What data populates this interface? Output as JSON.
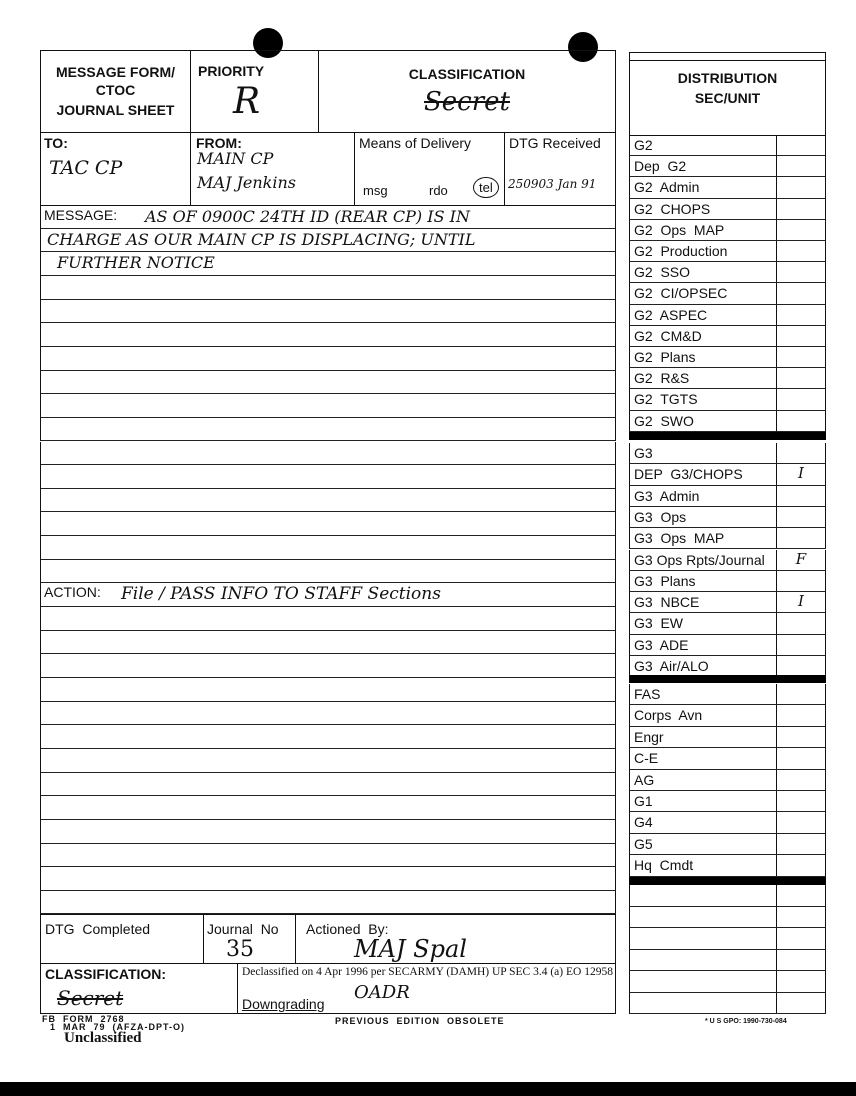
{
  "form": {
    "title_lines": [
      "MESSAGE FORM/",
      "CTOC",
      "JOURNAL SHEET"
    ],
    "priority_label": "PRIORITY",
    "priority_value": "R",
    "classification_label": "CLASSIFICATION",
    "classification_value": "Secret",
    "to_label": "TO:",
    "to_value": "TAC CP",
    "from_label": "FROM:",
    "from_lines": [
      "MAIN CP",
      "MAJ Jenkins"
    ],
    "means_label": "Means of Delivery",
    "means_options": [
      "msg",
      "rdo",
      "tel"
    ],
    "means_selected": "tel",
    "dtg_received_label": "DTG Received",
    "dtg_received_value": "250903 Jan 91",
    "message_label": "MESSAGE:",
    "message_lines": [
      "AS OF 0900C 24TH ID (REAR CP) IS IN",
      "CHARGE AS OUR MAIN CP IS DISPLACING; UNTIL",
      "FURTHER NOTICE"
    ],
    "action_label": "ACTION:",
    "action_value": "File / PASS INFO TO STAFF Sections",
    "dtg_completed_label": "DTG  Completed",
    "journal_no_label": "Journal  No",
    "journal_no_value": "35",
    "actioned_by_label": "Actioned  By:",
    "actioned_by_value": "MAJ Spal",
    "bottom_classification_label": "CLASSIFICATION:",
    "bottom_classification_value": "Secret",
    "declassified_note": "Declassified on 4 Apr 1996 per SECARMY (DAMH) UP SEC 3.4 (a) EO 12958",
    "downgrading_label": "Downgrading",
    "downgrading_value": "OADR"
  },
  "distribution": {
    "header_lines": [
      "DISTRIBUTION",
      "SEC/UNIT"
    ],
    "group1": [
      {
        "name": "G2",
        "mark": ""
      },
      {
        "name": "Dep  G2",
        "mark": ""
      },
      {
        "name": "G2  Admin",
        "mark": ""
      },
      {
        "name": "G2  CHOPS",
        "mark": ""
      },
      {
        "name": "G2  Ops  MAP",
        "mark": ""
      },
      {
        "name": "G2  Production",
        "mark": ""
      },
      {
        "name": "G2  SSO",
        "mark": ""
      },
      {
        "name": "G2  CI/OPSEC",
        "mark": ""
      },
      {
        "name": "G2  ASPEC",
        "mark": ""
      },
      {
        "name": "G2  CM&D",
        "mark": ""
      },
      {
        "name": "G2  Plans",
        "mark": ""
      },
      {
        "name": "G2  R&S",
        "mark": ""
      },
      {
        "name": "G2  TGTS",
        "mark": ""
      },
      {
        "name": "G2  SWO",
        "mark": ""
      }
    ],
    "group2": [
      {
        "name": "G3",
        "mark": ""
      },
      {
        "name": "DEP  G3/CHOPS",
        "mark": "I"
      },
      {
        "name": "G3  Admin",
        "mark": ""
      },
      {
        "name": "G3  Ops",
        "mark": ""
      },
      {
        "name": "G3  Ops  MAP",
        "mark": ""
      },
      {
        "name": "G3 Ops Rpts/Journal",
        "mark": "F"
      },
      {
        "name": "G3  Plans",
        "mark": ""
      },
      {
        "name": "G3  NBCE",
        "mark": "I"
      },
      {
        "name": "G3  EW",
        "mark": ""
      },
      {
        "name": "G3  ADE",
        "mark": ""
      },
      {
        "name": "G3  Air/ALO",
        "mark": ""
      }
    ],
    "group3": [
      {
        "name": "FAS",
        "mark": ""
      },
      {
        "name": "Corps  Avn",
        "mark": ""
      },
      {
        "name": "Engr",
        "mark": ""
      },
      {
        "name": "C-E",
        "mark": ""
      },
      {
        "name": "AG",
        "mark": ""
      },
      {
        "name": "G1",
        "mark": ""
      },
      {
        "name": "G4",
        "mark": ""
      },
      {
        "name": "G5",
        "mark": ""
      },
      {
        "name": "Hq  Cmdt",
        "mark": ""
      }
    ],
    "group4": [
      {
        "name": "",
        "mark": ""
      },
      {
        "name": "",
        "mark": ""
      },
      {
        "name": "",
        "mark": ""
      },
      {
        "name": "",
        "mark": ""
      },
      {
        "name": "",
        "mark": ""
      },
      {
        "name": "",
        "mark": ""
      }
    ]
  },
  "footer": {
    "form_id": "FB  FORM  2768",
    "form_date": "1  MAR  79  (AFZA-DPT-O)",
    "previous_edition": "PREVIOUS  EDITION  OBSOLETE",
    "gpo": "* U S GPO: 1990-730-084",
    "marking": "Unclassified"
  }
}
